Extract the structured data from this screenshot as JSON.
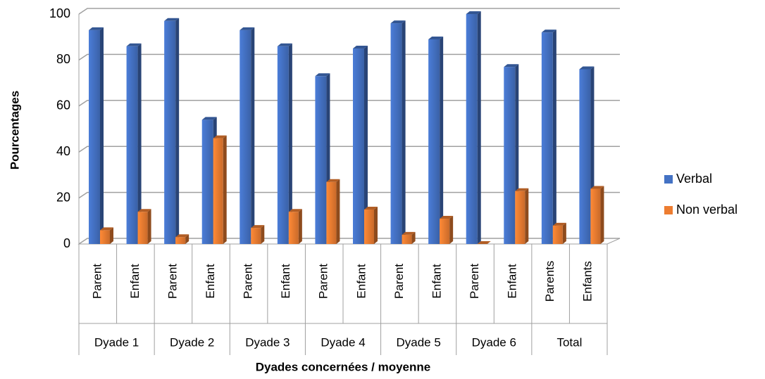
{
  "chart_data": {
    "type": "bar",
    "categories": [
      "Parent",
      "Enfant",
      "Parent",
      "Enfant",
      "Parent",
      "Enfant",
      "Parent",
      "Enfant",
      "Parent",
      "Enfant",
      "Parent",
      "Enfant",
      "Parents",
      "Enfants"
    ],
    "groups": [
      "Dyade 1",
      "Dyade 2",
      "Dyade 3",
      "Dyade 4",
      "Dyade 5",
      "Dyade 6",
      "Total"
    ],
    "series": [
      {
        "name": "Verbal",
        "color": "#4472c4",
        "values": [
          93,
          86,
          97,
          54,
          93,
          86,
          73,
          85,
          96,
          89,
          100,
          77,
          92,
          76
        ]
      },
      {
        "name": "Non verbal",
        "color": "#ed7d31",
        "values": [
          6,
          14,
          3,
          46,
          7,
          14,
          27,
          15,
          4,
          11,
          0,
          23,
          8,
          24
        ]
      }
    ],
    "ylim": [
      0,
      100
    ],
    "yticks": [
      0,
      20,
      40,
      60,
      80,
      100
    ],
    "grid": true,
    "y_label": "Pourcentages",
    "x_label": "Dyades concernées / moyenne",
    "legend": "right"
  }
}
